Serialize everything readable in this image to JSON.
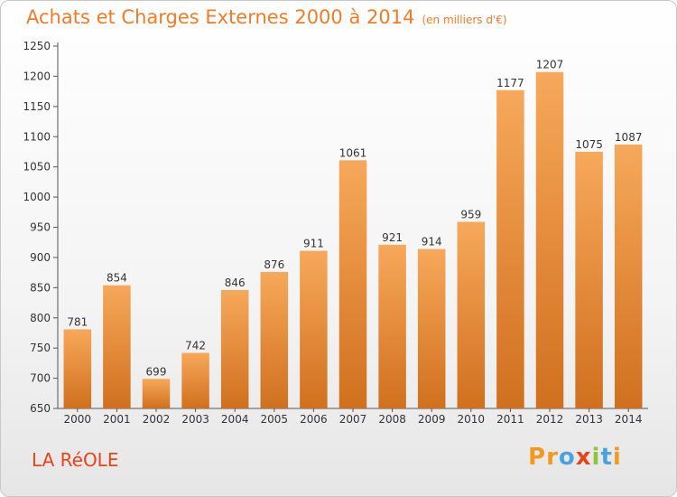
{
  "page": {
    "title": "Achats et Charges Externes 2000 à 2014",
    "subtitle": "(en milliers d'€)",
    "place": "LA RéOLE",
    "logo": [
      "P",
      "r",
      "o",
      "x",
      "i",
      "t",
      "i"
    ]
  },
  "colors": {
    "bar_light": "#f7a85a",
    "bar_dark": "#d0701e",
    "title": "#f07c2a",
    "place": "#e8441c"
  },
  "chart_data": {
    "type": "bar",
    "title": "Achats et Charges Externes 2000 à 2014",
    "subtitle": "(en milliers d'€)",
    "xlabel": "",
    "ylabel": "",
    "categories": [
      "2000",
      "2001",
      "2002",
      "2003",
      "2004",
      "2005",
      "2006",
      "2007",
      "2008",
      "2009",
      "2010",
      "2011",
      "2012",
      "2013",
      "2014"
    ],
    "values": [
      781,
      854,
      699,
      742,
      846,
      876,
      911,
      1061,
      921,
      914,
      959,
      1177,
      1207,
      1075,
      1087
    ],
    "ylim": [
      650,
      1250
    ],
    "yticks": [
      650,
      700,
      750,
      800,
      850,
      900,
      950,
      1000,
      1050,
      1100,
      1150,
      1200,
      1250
    ],
    "grid": false,
    "legend": "none"
  }
}
